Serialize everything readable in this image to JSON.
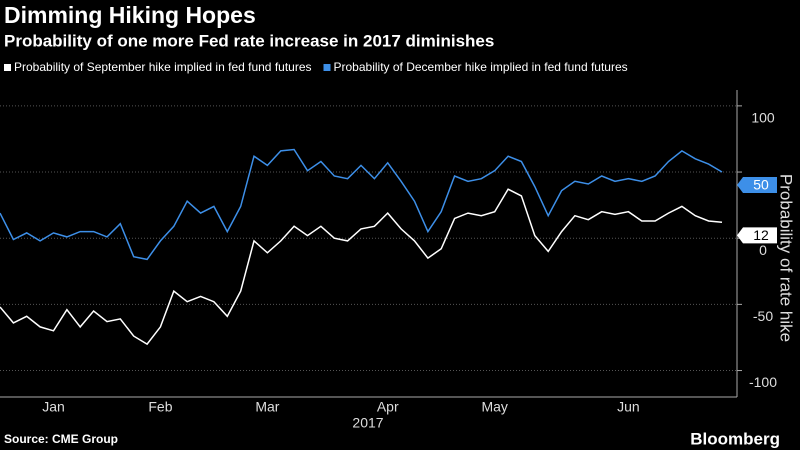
{
  "chart_data": {
    "type": "line",
    "title": "Dimming Hiking Hopes",
    "subtitle": "Probability of one more Fed rate increase in 2017 diminishes",
    "y_label": "Probability of rate hike",
    "x_label": "2017",
    "source": "Source: CME Group",
    "brand": "Bloomberg",
    "categories": [
      null,
      null,
      null,
      null,
      "Jan",
      null,
      null,
      null,
      null,
      null,
      null,
      null,
      "Feb",
      null,
      null,
      null,
      null,
      null,
      null,
      null,
      "Mar",
      null,
      null,
      null,
      null,
      null,
      null,
      null,
      null,
      "Apr",
      null,
      null,
      null,
      null,
      null,
      null,
      null,
      "May",
      null,
      null,
      null,
      null,
      null,
      null,
      null,
      null,
      null,
      "Jun",
      null,
      null,
      null,
      null,
      null,
      null,
      null
    ],
    "series": [
      {
        "name": "Probability of September hike implied in fed fund futures",
        "color": "#ffffff",
        "values": [
          -52,
          -64,
          -59,
          -67,
          -70,
          -54,
          -67,
          -55,
          -63,
          -61,
          -74,
          -80,
          -67,
          -40,
          -48,
          -44,
          -48,
          -59,
          -40,
          -2,
          -11,
          -2,
          9,
          2,
          9,
          0,
          -2,
          7,
          9,
          19,
          7,
          -2,
          -15,
          -8,
          15,
          19,
          17,
          20,
          37,
          32,
          2,
          -10,
          5,
          17,
          14,
          20,
          18,
          20,
          13,
          13,
          19,
          24,
          17,
          13,
          12
        ]
      },
      {
        "name": "Probability of December hike implied in fed fund futures",
        "color": "#3d8fe8",
        "values": [
          19,
          -1,
          4,
          -2,
          4,
          1,
          5,
          5,
          1,
          11,
          -14,
          -16,
          -2,
          9,
          28,
          19,
          24,
          5,
          24,
          62,
          55,
          66,
          67,
          51,
          58,
          47,
          45,
          55,
          45,
          57,
          43,
          28,
          5,
          20,
          47,
          43,
          45,
          51,
          62,
          58,
          39,
          17,
          36,
          43,
          41,
          47,
          43,
          45,
          43,
          47,
          58,
          66,
          60,
          56,
          50
        ]
      }
    ],
    "ylim": [
      -120,
      112
    ],
    "yticks": [
      -100,
      -50,
      0,
      50,
      100
    ],
    "grid": true
  }
}
